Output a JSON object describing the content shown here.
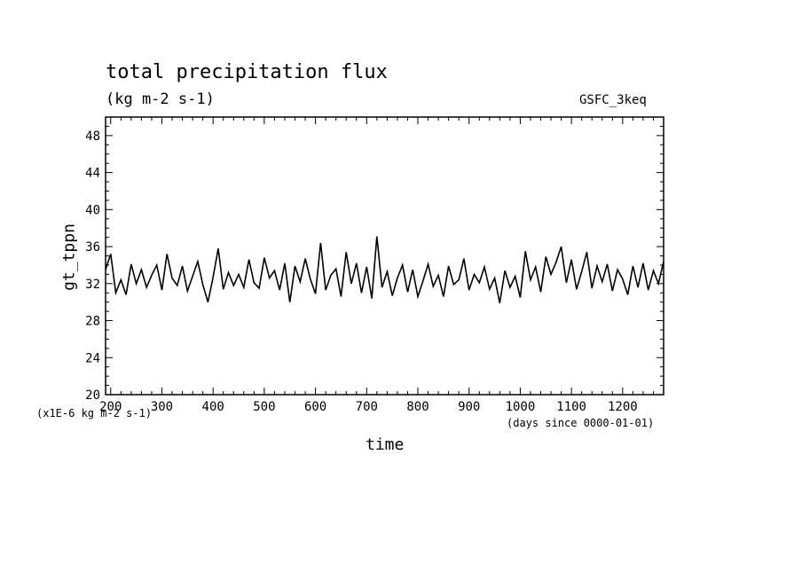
{
  "chart_data": {
    "type": "line",
    "title": "total precipitation flux",
    "subtitle": "(kg m-2 s-1)",
    "tag": "GSFC_3keq",
    "xlabel": "time",
    "ylabel": "gt_tppn",
    "scale_note": "(x1E-6 kg m-2 s-1)",
    "x_units_note": "(days since 0000-01-01)",
    "xlim": [
      190,
      1280
    ],
    "ylim": [
      20,
      50
    ],
    "xticks": [
      200,
      300,
      400,
      500,
      600,
      700,
      800,
      900,
      1000,
      1100,
      1200
    ],
    "xtick_labels": [
      "200",
      "300",
      "400",
      "500",
      "600",
      "700",
      "800",
      "900",
      "1000",
      "1100",
      "1200"
    ],
    "yticks": [
      20,
      24,
      28,
      32,
      36,
      40,
      44,
      48
    ],
    "ytick_labels": [
      "20",
      "24",
      "28",
      "32",
      "36",
      "40",
      "44",
      "48"
    ],
    "line_color": "#000000",
    "series": [
      {
        "x": [
          190,
          200,
          210,
          220,
          230,
          240,
          250,
          260,
          270,
          280,
          290,
          300,
          310,
          320,
          330,
          340,
          350,
          360,
          370,
          380,
          390,
          400,
          410,
          420,
          430,
          440,
          450,
          460,
          470,
          480,
          490,
          500,
          510,
          520,
          530,
          540,
          550,
          560,
          570,
          580,
          590,
          600,
          610,
          620,
          630,
          640,
          650,
          660,
          670,
          680,
          690,
          700,
          710,
          720,
          730,
          740,
          750,
          760,
          770,
          780,
          790,
          800,
          810,
          820,
          830,
          840,
          850,
          860,
          870,
          880,
          890,
          900,
          910,
          920,
          930,
          940,
          950,
          960,
          970,
          980,
          990,
          1000,
          1010,
          1020,
          1030,
          1040,
          1050,
          1060,
          1070,
          1080,
          1090,
          1100,
          1110,
          1120,
          1130,
          1140,
          1150,
          1160,
          1170,
          1180,
          1190,
          1200,
          1210,
          1220,
          1230,
          1240,
          1250,
          1260,
          1270,
          1280
        ],
        "values": [
          33.5,
          35.2,
          31.0,
          32.4,
          30.8,
          34.1,
          32.0,
          33.5,
          31.6,
          32.9,
          34.0,
          31.3,
          35.2,
          32.6,
          31.8,
          33.9,
          31.2,
          32.8,
          34.4,
          31.9,
          30.0,
          32.7,
          35.8,
          31.4,
          33.2,
          31.8,
          33.0,
          31.6,
          34.6,
          32.1,
          31.5,
          34.8,
          32.6,
          33.4,
          31.3,
          34.2,
          30.0,
          33.9,
          32.2,
          34.7,
          32.5,
          30.9,
          36.4,
          31.3,
          32.9,
          33.6,
          30.6,
          35.4,
          32.0,
          34.2,
          31.0,
          33.8,
          30.4,
          37.1,
          31.6,
          33.3,
          30.7,
          32.6,
          34.0,
          31.1,
          33.5,
          30.6,
          32.3,
          34.1,
          31.7,
          32.9,
          30.6,
          33.9,
          31.9,
          32.4,
          34.7,
          31.3,
          33.0,
          32.1,
          33.8,
          31.4,
          32.6,
          29.9,
          33.4,
          31.6,
          32.8,
          30.5,
          35.5,
          32.4,
          33.8,
          31.1,
          34.9,
          33.0,
          34.3,
          36.0,
          32.1,
          34.6,
          31.4,
          33.3,
          35.4,
          31.5,
          33.9,
          32.2,
          34.1,
          31.2,
          33.5,
          32.5,
          30.8,
          33.9,
          31.6,
          34.2,
          31.3,
          33.4,
          32.0,
          34.4
        ]
      }
    ]
  }
}
